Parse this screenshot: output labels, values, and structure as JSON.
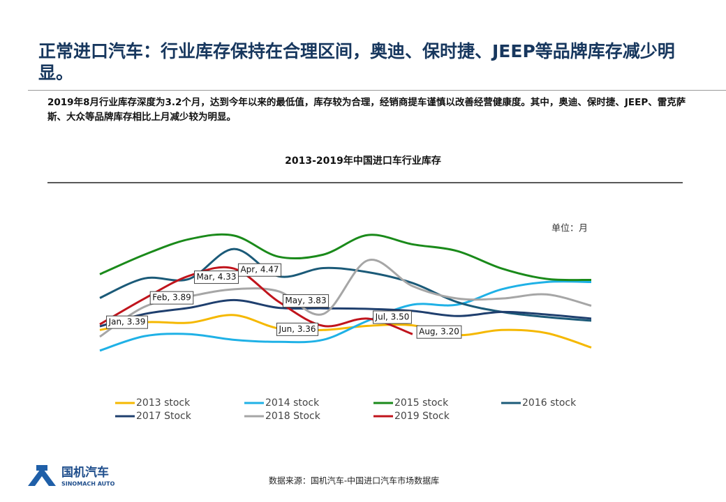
{
  "header": {
    "title": "正常进口汽车：行业库存保持在合理区间，奥迪、保时捷、JEEP等品牌库存减少明显。",
    "body": "2019年8月行业库存深度为3.2个月，达到今年以来的最低值，库存较为合理，经销商提车谨慎以改善经营健康度。其中，奥迪、保时捷、JEEP、雷克萨斯、大众等品牌库存相比上月减少较为明显。"
  },
  "chart_data": {
    "type": "line",
    "title": "2013-2019年中国进口车行业库存",
    "unit": "单位：月",
    "categories": [
      null,
      null,
      null,
      null,
      null,
      null,
      null,
      null,
      null,
      null,
      null,
      null
    ],
    "ylim": [
      2.5,
      5.5
    ],
    "grid": false,
    "series": [
      {
        "name": "2013 stock",
        "color": "#f5b800",
        "values": [
          3.28,
          3.43,
          3.42,
          3.57,
          3.31,
          3.28,
          3.36,
          3.37,
          3.18,
          3.28,
          3.22,
          2.94
        ]
      },
      {
        "name": "2014 stock",
        "color": "#1fb1e6",
        "values": [
          2.88,
          3.16,
          3.2,
          3.09,
          3.05,
          3.09,
          3.46,
          3.77,
          3.77,
          4.07,
          4.21,
          4.21
        ]
      },
      {
        "name": "2015 stock",
        "color": "#1a8a1a",
        "values": [
          4.36,
          4.74,
          5.04,
          5.11,
          4.7,
          4.74,
          5.12,
          4.94,
          4.81,
          4.47,
          4.27,
          4.25
        ]
      },
      {
        "name": "2016 stock",
        "color": "#1b5a78",
        "values": [
          3.9,
          4.28,
          4.27,
          4.85,
          4.32,
          4.48,
          4.4,
          4.19,
          3.82,
          3.63,
          3.53,
          3.46
        ]
      },
      {
        "name": "2017 Stock",
        "color": "#1f3f6e",
        "values": [
          3.35,
          3.59,
          3.71,
          3.86,
          3.71,
          3.7,
          3.69,
          3.65,
          3.55,
          3.63,
          3.58,
          3.5
        ]
      },
      {
        "name": "2018 Stock",
        "color": "#a6a6a6",
        "values": [
          3.15,
          3.73,
          3.93,
          4.07,
          4.03,
          3.59,
          4.63,
          4.13,
          3.89,
          3.89,
          3.97,
          3.75
        ]
      },
      {
        "name": "2019 Stock",
        "color": "#c0141c",
        "values": [
          3.39,
          3.89,
          4.33,
          4.47,
          3.83,
          3.36,
          3.5,
          3.2,
          null,
          null,
          null,
          null
        ],
        "value_labels": [
          "Jan, 3.39",
          "Feb, 3.89",
          "Mar, 4.33",
          "Apr, 4.47",
          "May, 3.83",
          "Jun, 3.36",
          "Jul, 3.50",
          "Aug, 3.20",
          null,
          null,
          null,
          null
        ]
      }
    ]
  },
  "footer": {
    "source": "数据来源：国机汽车-中国进口汽车市场数据库",
    "logo_cn": "国机汽车",
    "logo_en": "SINOMACH AUTO"
  }
}
